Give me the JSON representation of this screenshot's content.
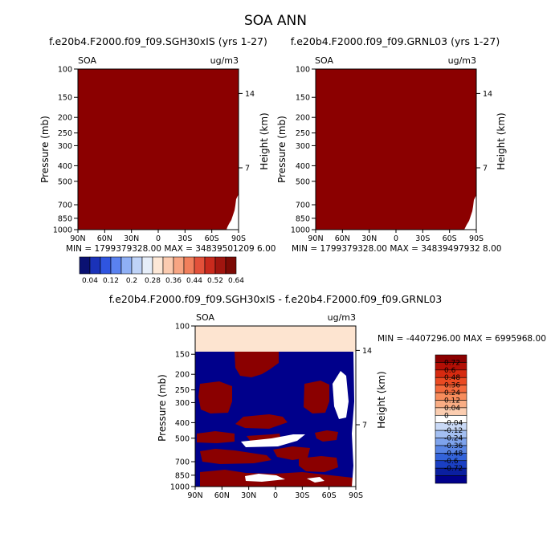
{
  "title": "SOA ANN",
  "chart_data": [
    {
      "type": "heatmap",
      "title": "f.e20b4.F2000.f09_f09.SGH30xIS (yrs 1-27)",
      "corner_left": "SOA",
      "corner_right": "ug/m3",
      "ylabel": "Pressure (mb)",
      "ylabel_right": "Height (km)",
      "x_ticks": [
        "90N",
        "60N",
        "30N",
        "0",
        "30S",
        "60S",
        "90S"
      ],
      "y_ticks": [
        "100",
        "150",
        "200",
        "250",
        "300",
        "400",
        "500",
        "700",
        "850",
        "1000"
      ],
      "y_ticks_right": [
        "14",
        "7"
      ],
      "ylim": [
        1000,
        100
      ],
      "stats": "MIN = 1799379328.00    MAX = 34839501209 6.00",
      "field": "uniformly above the top contour level (0.64)",
      "fill_color": "#8b0000"
    },
    {
      "type": "heatmap",
      "title": "f.e20b4.F2000.f09_f09.GRNL03 (yrs 1-27)",
      "corner_left": "SOA",
      "corner_right": "ug/m3",
      "ylabel": "Pressure (mb)",
      "ylabel_right": "Height (km)",
      "x_ticks": [
        "90N",
        "60N",
        "30N",
        "0",
        "30S",
        "60S",
        "90S"
      ],
      "y_ticks": [
        "100",
        "150",
        "200",
        "250",
        "300",
        "400",
        "500",
        "700",
        "850",
        "1000"
      ],
      "y_ticks_right": [
        "14",
        "7"
      ],
      "ylim": [
        1000,
        100
      ],
      "stats": "MIN = 1799379328.00    MAX = 34839497932 8.00",
      "field": "uniformly above the top contour level (0.64)",
      "fill_color": "#8b0000"
    },
    {
      "type": "heatmap",
      "title": "f.e20b4.F2000.f09_f09.SGH30xIS - f.e20b4.F2000.f09_f09.GRNL03",
      "corner_left": "SOA",
      "corner_right": "ug/m3",
      "ylabel": "Pressure (mb)",
      "ylabel_right": "Height (km)",
      "x_ticks": [
        "90N",
        "60N",
        "30N",
        "0",
        "30S",
        "60S",
        "90S"
      ],
      "y_ticks": [
        "100",
        "150",
        "200",
        "250",
        "300",
        "400",
        "500",
        "700",
        "850",
        "1000"
      ],
      "y_ticks_right": [
        "14",
        "7"
      ],
      "ylim": [
        1000,
        100
      ],
      "stats": "MIN = -4407296.00    MAX = 6995968.00",
      "field": "alternating positive (dark red) and negative (dark blue) bands below 150 mb; 100-150 mb near zero",
      "colors": {
        "pos": "#8b0000",
        "neg": "#00008b",
        "zero": "#ffffff",
        "top_band": "#fde4d0"
      }
    }
  ],
  "colorbar_main": {
    "labels": [
      "0.04",
      "0.12",
      "0.2",
      "0.28",
      "0.36",
      "0.44",
      "0.52",
      "0.64"
    ],
    "colors": [
      "#0a1172",
      "#1a32b8",
      "#2f55e0",
      "#5a82f0",
      "#8fb0f5",
      "#bfd3f7",
      "#e6eef9",
      "#fde8d7",
      "#fbcbb0",
      "#f7a583",
      "#f17f5c",
      "#e3513a",
      "#c92a1d",
      "#a0150f",
      "#7c0a05"
    ]
  },
  "colorbar_diff": {
    "labels": [
      "0.72",
      "0.6",
      "0.48",
      "0.36",
      "0.24",
      "0.12",
      "0.04",
      "0",
      "-0.04",
      "-0.12",
      "-0.24",
      "-0.36",
      "-0.48",
      "-0.6",
      "-0.72"
    ],
    "colors": [
      "#8b0000",
      "#b30f05",
      "#d62a10",
      "#ea4a22",
      "#f3693c",
      "#f78c5c",
      "#f9ad84",
      "#fbcdb0",
      "#ffffff",
      "#c9d9f6",
      "#a3bff2",
      "#7ea3ec",
      "#5884e4",
      "#3363da",
      "#1a3fc4",
      "#0a1fa0",
      "#00008b"
    ]
  }
}
